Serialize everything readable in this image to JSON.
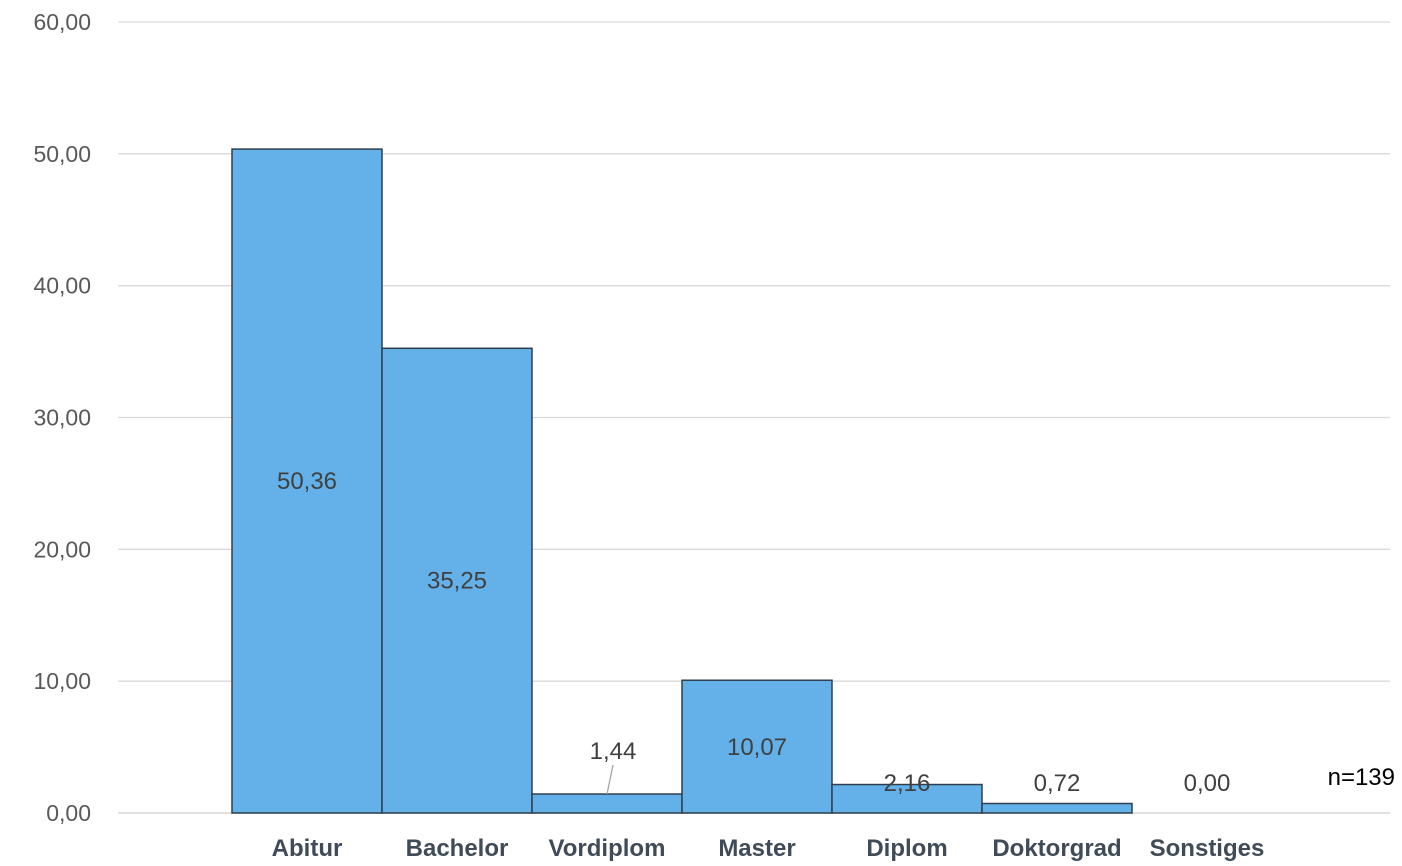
{
  "chart_data": {
    "type": "bar",
    "categories": [
      "Abitur",
      "Bachelor",
      "Vordiplom",
      "Master",
      "Diplom",
      "Doktorgrad",
      "Sonstiges"
    ],
    "values": [
      50.36,
      35.25,
      1.44,
      10.07,
      2.16,
      0.72,
      0.0
    ],
    "data_labels": [
      "50,36",
      "35,25",
      "1,44",
      "10,07",
      "2,16",
      "0,72",
      "0,00"
    ],
    "ylim": [
      0,
      60
    ],
    "yticks": [
      0,
      10,
      20,
      30,
      40,
      50,
      60
    ],
    "ytick_labels": [
      "0,00",
      "10,00",
      "20,00",
      "30,00",
      "40,00",
      "50,00",
      "60,00"
    ],
    "grid": true,
    "annotation": "n=139",
    "colors": {
      "bar_fill": "#63b1e8",
      "bar_stroke": "#2f3f4f",
      "grid": "#d9d9d9"
    }
  }
}
